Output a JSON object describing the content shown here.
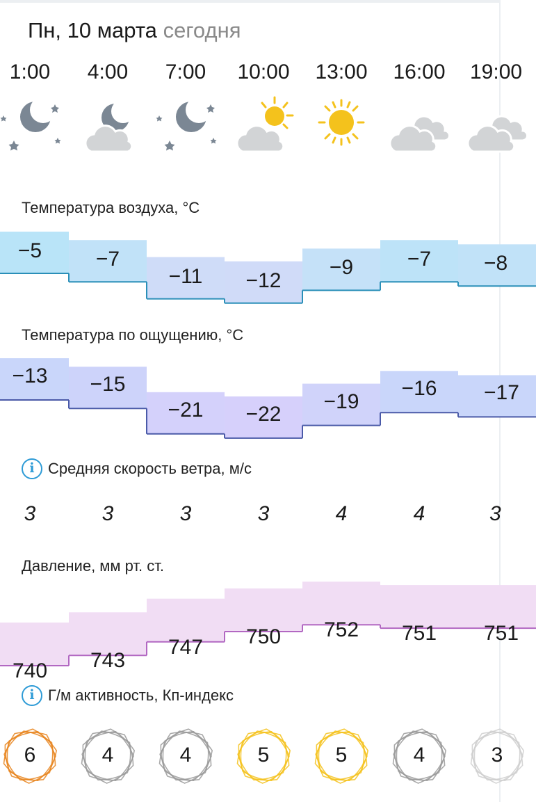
{
  "date_header": {
    "day": "Пн, 10 марта",
    "today_label": "сегодня"
  },
  "times": [
    "1:00",
    "4:00",
    "7:00",
    "10:00",
    "13:00",
    "16:00",
    "19:00"
  ],
  "icons": [
    "night-clear-icon",
    "night-cloudy-icon",
    "night-clear-icon",
    "partly-cloudy-icon",
    "sunny-icon",
    "cloudy-icon",
    "cloudy-icon"
  ],
  "air_temp": {
    "title": "Температура воздуха, °C",
    "values": [
      "−5",
      "−7",
      "−11",
      "−12",
      "−9",
      "−7",
      "−8"
    ],
    "numbers": [
      -5,
      -7,
      -11,
      -12,
      -9,
      -7,
      -8
    ]
  },
  "feels_like": {
    "title": "Температура по ощущению, °C",
    "values": [
      "−13",
      "−15",
      "−21",
      "−22",
      "−19",
      "−16",
      "−17"
    ],
    "numbers": [
      -13,
      -15,
      -21,
      -22,
      -19,
      -16,
      -17
    ]
  },
  "wind": {
    "title": "Средняя скорость ветра, м/с",
    "values": [
      "3",
      "3",
      "3",
      "3",
      "4",
      "4",
      "3"
    ]
  },
  "pressure": {
    "title": "Давление, мм рт. ст.",
    "values": [
      "740",
      "743",
      "747",
      "750",
      "752",
      "751",
      "751"
    ],
    "numbers": [
      740,
      743,
      747,
      750,
      752,
      751,
      751
    ]
  },
  "kp": {
    "title": "Г/м активность, Кп-индекс",
    "values": [
      "6",
      "4",
      "4",
      "5",
      "5",
      "4",
      "3"
    ]
  },
  "colors": {
    "air_fill": [
      "#b9e4f8",
      "#c1e2f8",
      "#cfdcf8",
      "#d0dbf8",
      "#c5e1f8",
      "#bde3f8",
      "#c1e2f8"
    ],
    "air_line": "#2a8fb8",
    "feels_fill": [
      "#c9d6fa",
      "#cdd3fa",
      "#d4d1fb",
      "#d6d0fb",
      "#d0d3fa",
      "#c9d6fa",
      "#c9d6fa"
    ],
    "feels_line": "#4a5aa8",
    "pressure_fill": "#f1ddf4",
    "pressure_line": "#b268c2",
    "kp_orange": "#e8851f",
    "kp_yellow": "#f4c21c",
    "kp_gray": "#9a9a9a",
    "kp_lightgray": "#cfcfcf"
  }
}
